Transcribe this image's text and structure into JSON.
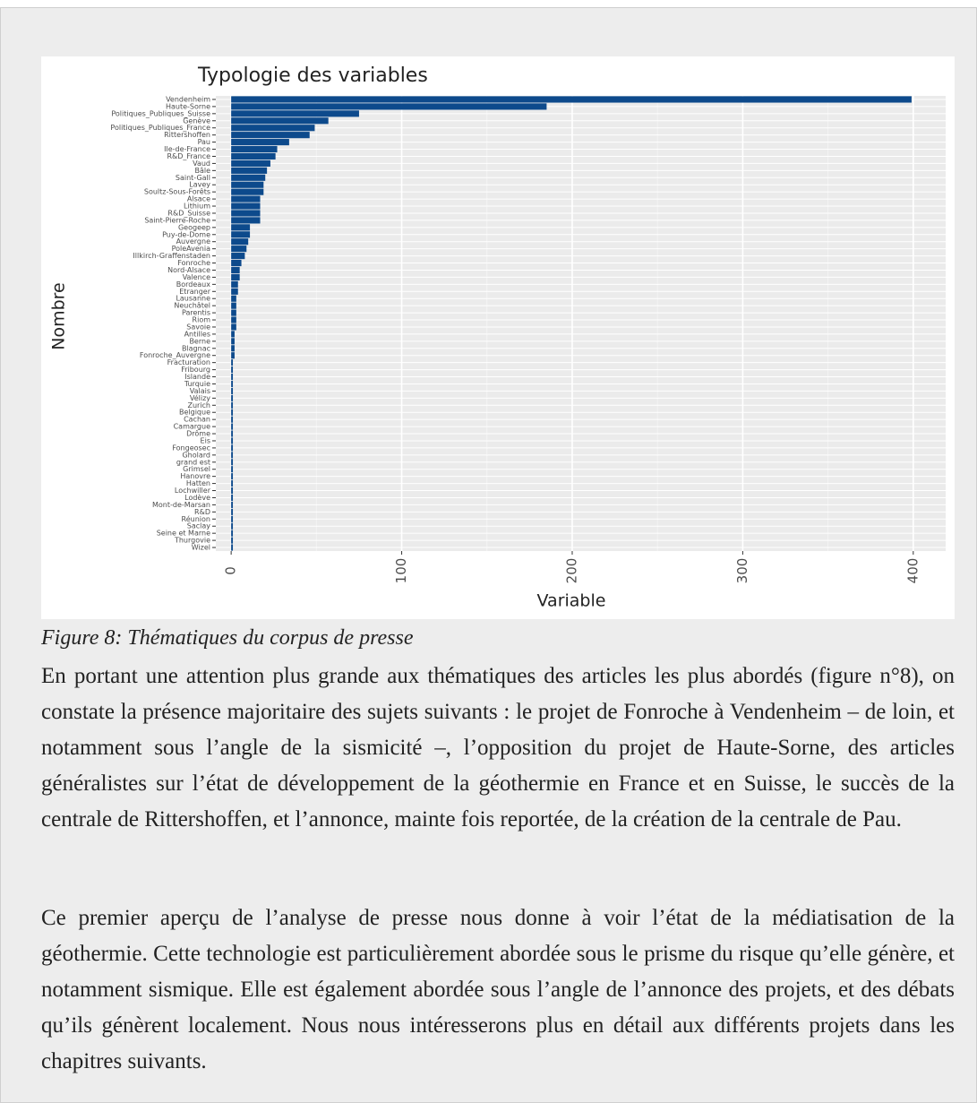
{
  "chart_data": {
    "type": "barh",
    "title": "Typologie des variables",
    "ylabel": "Nombre",
    "xlabel": "Variable",
    "categories": [
      "Vendenheim",
      "Haute-Sorne",
      "Politiques_Publiques_Suisse",
      "Genève",
      "Politiques_Publiques_France",
      "Rittershoffen",
      "Pau",
      "Ile-de-France",
      "R&D_France",
      "Vaud",
      "Bâle",
      "Saint-Gall",
      "Lavey",
      "Soultz-Sous-Forêts",
      "Alsace",
      "Lithium",
      "R&D_Suisse",
      "Saint-Pierre-Roche",
      "Geogeep",
      "Puy-de-Dome",
      "Auvergne",
      "PoleAvenia",
      "Illkirch-Graffenstaden",
      "Fonroche",
      "Nord-Alsace",
      "Valence",
      "Bordeaux",
      "Etranger",
      "Lausanne",
      "Neuchâtel",
      "Parentis",
      "Riom",
      "Savoie",
      "Antilles",
      "Berne",
      "Blagnac",
      "Fonroche_Auvergne",
      "Fracturation",
      "Fribourg",
      "Islande",
      "Turquie",
      "Valais",
      "Vélizy",
      "Zurich",
      "Belgique",
      "Cachan",
      "Camargue",
      "Drôme",
      "Eis",
      "Fongeosec",
      "Gholard",
      "grand est",
      "Grimsel",
      "Hanovre",
      "Hatten",
      "Lochwiller",
      "Lodève",
      "Mont-de-Marsan",
      "R&D",
      "Réunion",
      "Saclay",
      "Seine et Marne",
      "Thurgovie",
      "Wizel"
    ],
    "values": [
      399,
      185,
      75,
      57,
      49,
      46,
      34,
      27,
      26,
      23,
      21,
      20,
      19,
      19,
      17,
      17,
      17,
      17,
      11,
      11,
      10,
      9,
      8,
      6,
      5,
      5,
      4,
      4,
      3,
      3,
      3,
      3,
      3,
      2,
      2,
      2,
      2,
      1,
      1,
      1,
      1,
      1,
      1,
      1,
      1,
      1,
      1,
      1,
      1,
      1,
      1,
      1,
      1,
      1,
      1,
      1,
      1,
      1,
      1,
      1,
      1,
      1,
      1,
      1
    ],
    "color": "#0d4a8c",
    "xlim": [
      -9,
      419
    ],
    "xticks": [
      0,
      100,
      200,
      300,
      400
    ],
    "grid": true
  },
  "caption": "Figure 8: Thématiques du corpus de presse",
  "paragraphs": [
    "En portant une attention plus grande aux thématiques des articles les plus abordés (figure n°8), on constate la présence majoritaire des sujets suivants : le projet de Fonroche à Vendenheim – de loin, et notamment sous l’angle de la sismicité –, l’opposition du projet de Haute-Sorne, des articles généralistes sur l’état de développement de la géothermie en France et en Suisse, le succès de la centrale de Rittershoffen, et l’annonce, mainte fois reportée, de la création de la centrale de Pau.",
    "Ce premier aperçu de l’analyse de presse nous donne à voir l’état de la médiatisation de la géothermie. Cette technologie est particulièrement abordée sous le prisme du risque qu’elle génère, et notamment sismique. Elle est également abordée sous l’angle de l’annonce des projets, et des débats qu’ils génèrent localement. Nous nous intéresserons plus en détail aux différents projets dans les chapitres suivants."
  ]
}
